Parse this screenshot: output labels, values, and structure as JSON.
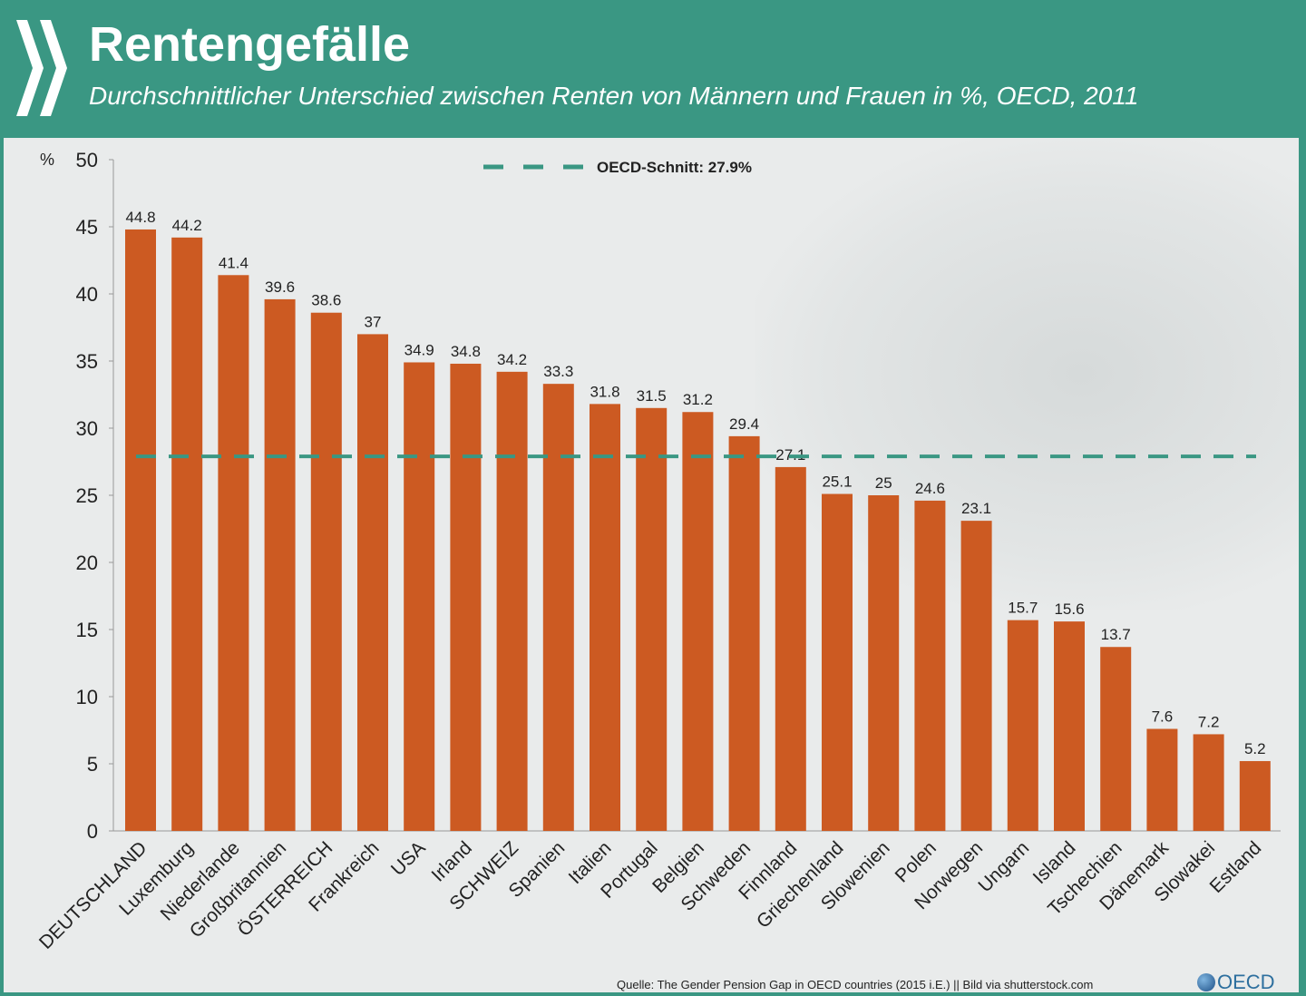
{
  "header": {
    "title": "Rentengefälle",
    "subtitle": "Durchschnittlicher Unterschied zwischen Renten von Männern und Frauen in %, OECD, 2011"
  },
  "footer": {
    "source": "Quelle: The Gender Pension Gap in OECD countries (2015 i.E.) || Bild via shutterstock.com",
    "logo": "OECD"
  },
  "colors": {
    "header": "#3a9783",
    "bar": "#cc5a22",
    "reference_line": "#3a9783",
    "panel": "#e9ebeb"
  },
  "chart_data": {
    "type": "bar",
    "title": "Rentengefälle",
    "subtitle": "Durchschnittlicher Unterschied zwischen Renten von Männern und Frauen in %, OECD, 2011",
    "ylabel": "%",
    "ylim": [
      0,
      50
    ],
    "yticks": [
      0,
      5,
      10,
      15,
      20,
      25,
      30,
      35,
      40,
      45,
      50
    ],
    "grid": false,
    "categories": [
      "DEUTSCHLAND",
      "Luxemburg",
      "Niederlande",
      "Großbritannien",
      "ÖSTERREICH",
      "Frankreich",
      "USA",
      "Irland",
      "SCHWEIZ",
      "Spanien",
      "Italien",
      "Portugal",
      "Belgien",
      "Schweden",
      "Finnland",
      "Griechenland",
      "Slowenien",
      "Polen",
      "Norwegen",
      "Ungarn",
      "Island",
      "Tschechien",
      "Dänemark",
      "Slowakei",
      "Estland"
    ],
    "values": [
      44.8,
      44.2,
      41.4,
      39.6,
      38.6,
      37,
      34.9,
      34.8,
      34.2,
      33.3,
      31.8,
      31.5,
      31.2,
      29.4,
      27.1,
      25.1,
      25,
      24.6,
      23.1,
      15.7,
      15.6,
      13.7,
      7.6,
      7.2,
      5.2
    ],
    "reference_line": {
      "value": 27.9,
      "label": "OECD-Schnitt: 27.9%",
      "style": "dashed"
    },
    "legend": "top-center"
  }
}
